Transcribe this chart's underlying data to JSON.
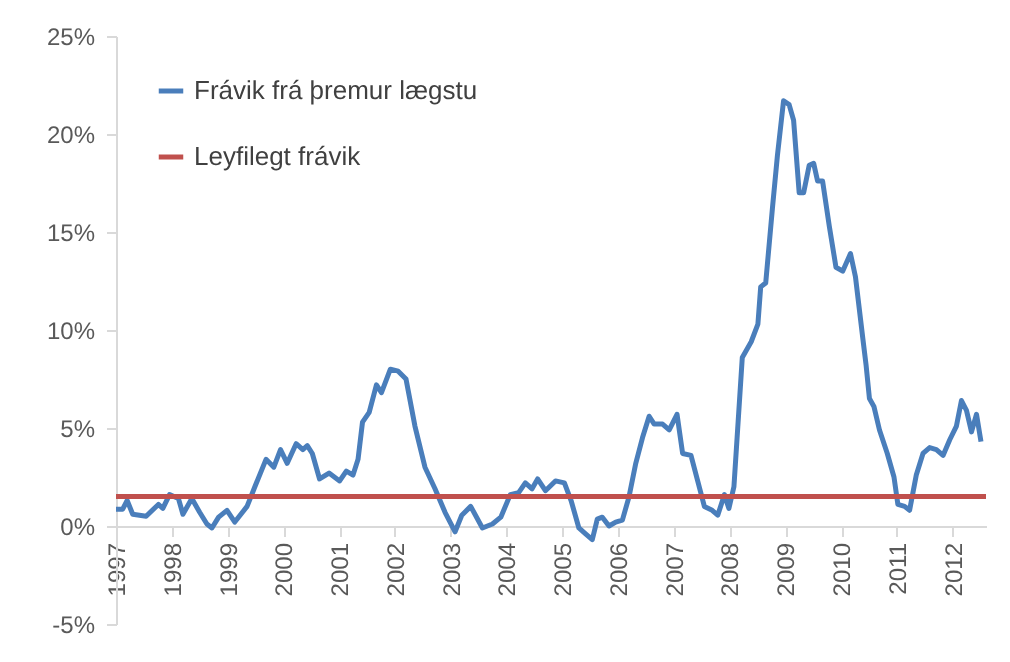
{
  "chart_data": {
    "type": "line",
    "xlim": [
      1997,
      2012.6
    ],
    "xticks": [
      1997,
      1998,
      1999,
      2000,
      2001,
      2002,
      2003,
      2004,
      2005,
      2006,
      2007,
      2008,
      2009,
      2010,
      2011,
      2012
    ],
    "ylim": [
      -5,
      25
    ],
    "yticks": [
      {
        "value": -5,
        "label": "-5%"
      },
      {
        "value": 0,
        "label": "0%"
      },
      {
        "value": 5,
        "label": "5%"
      },
      {
        "value": 10,
        "label": "10%"
      },
      {
        "value": 15,
        "label": "15%"
      },
      {
        "value": 20,
        "label": "20%"
      },
      {
        "value": 25,
        "label": "25%"
      }
    ],
    "grid": false,
    "legend": "top left",
    "marker": "none",
    "line_style": "solid",
    "series": [
      {
        "name": "Frávik frá þremur lægstu",
        "color": "#4a7ebb",
        "x": [
          1997.0,
          1997.12,
          1997.2,
          1997.3,
          1997.54,
          1997.76,
          1997.84,
          1997.96,
          1998.12,
          1998.2,
          1998.36,
          1998.5,
          1998.63,
          1998.72,
          1998.84,
          1998.99,
          1999.13,
          1999.35,
          1999.49,
          1999.69,
          1999.83,
          1999.95,
          2000.07,
          2000.23,
          2000.35,
          2000.43,
          2000.52,
          2000.65,
          2000.82,
          2001.01,
          2001.13,
          2001.25,
          2001.34,
          2001.42,
          2001.54,
          2001.67,
          2001.76,
          2001.92,
          2002.06,
          2002.2,
          2002.36,
          2002.54,
          2002.72,
          2002.9,
          2003.08,
          2003.2,
          2003.36,
          2003.57,
          2003.75,
          2003.9,
          2004.07,
          2004.22,
          2004.34,
          2004.46,
          2004.56,
          2004.7,
          2004.88,
          2005.04,
          2005.16,
          2005.3,
          2005.42,
          2005.54,
          2005.63,
          2005.72,
          2005.84,
          2005.96,
          2006.08,
          2006.2,
          2006.32,
          2006.44,
          2006.56,
          2006.65,
          2006.8,
          2006.92,
          2007.06,
          2007.16,
          2007.31,
          2007.43,
          2007.55,
          2007.69,
          2007.79,
          2007.91,
          2007.99,
          2008.08,
          2008.23,
          2008.39,
          2008.51,
          2008.56,
          2008.65,
          2008.77,
          2008.86,
          2008.97,
          2009.07,
          2009.15,
          2009.25,
          2009.33,
          2009.43,
          2009.51,
          2009.58,
          2009.67,
          2009.79,
          2009.91,
          2010.03,
          2010.17,
          2010.26,
          2010.39,
          2010.45,
          2010.51,
          2010.59,
          2010.69,
          2010.83,
          2010.95,
          2011.02,
          2011.14,
          2011.23,
          2011.35,
          2011.47,
          2011.59,
          2011.71,
          2011.83,
          2011.95,
          2012.07,
          2012.16,
          2012.25,
          2012.34,
          2012.43,
          2012.51
        ],
        "values": [
          0.86,
          0.86,
          1.3,
          0.6,
          0.5,
          1.1,
          0.9,
          1.6,
          1.4,
          0.6,
          1.4,
          0.7,
          0.1,
          -0.1,
          0.45,
          0.8,
          0.2,
          1.0,
          2.0,
          3.4,
          3.0,
          3.9,
          3.2,
          4.2,
          3.9,
          4.1,
          3.7,
          2.4,
          2.7,
          2.3,
          2.8,
          2.6,
          3.4,
          5.3,
          5.8,
          7.2,
          6.8,
          8.0,
          7.9,
          7.5,
          5.1,
          3.0,
          1.9,
          0.7,
          -0.3,
          0.55,
          1.0,
          -0.1,
          0.1,
          0.45,
          1.6,
          1.7,
          2.2,
          1.9,
          2.4,
          1.8,
          2.3,
          2.2,
          1.3,
          -0.1,
          -0.4,
          -0.7,
          0.35,
          0.45,
          0.0,
          0.2,
          0.3,
          1.5,
          3.2,
          4.5,
          5.6,
          5.2,
          5.2,
          4.9,
          5.7,
          3.7,
          3.6,
          2.3,
          1.0,
          0.8,
          0.55,
          1.6,
          0.9,
          2.0,
          8.6,
          9.4,
          10.3,
          12.2,
          12.4,
          16.2,
          18.9,
          21.7,
          21.5,
          20.7,
          17.0,
          17.0,
          18.4,
          18.5,
          17.6,
          17.6,
          15.3,
          13.2,
          13.0,
          13.9,
          12.7,
          9.6,
          8.2,
          6.5,
          6.1,
          4.9,
          3.7,
          2.5,
          1.1,
          1.0,
          0.8,
          2.6,
          3.7,
          4.0,
          3.9,
          3.6,
          4.4,
          5.1,
          6.4,
          5.9,
          4.8,
          5.7,
          4.3
        ]
      },
      {
        "name": "Leyfilegt frávik",
        "color": "#c0504d",
        "x": [
          1997,
          2012.6
        ],
        "values": [
          1.5,
          1.5
        ]
      }
    ]
  }
}
